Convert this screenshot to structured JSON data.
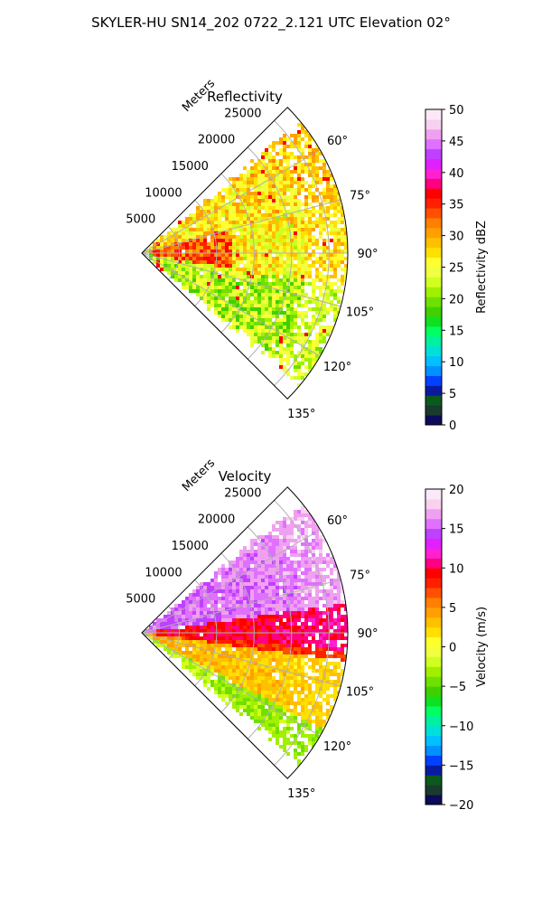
{
  "title": "SKYLER-HU  SN14_202  0722_2.121 UTC Elevation 02°",
  "chart_data": [
    {
      "type": "heatmap",
      "projection": "polar-sector",
      "title": "Reflectivity",
      "range_axis_label": "Meters",
      "range_ticks": [
        5000,
        10000,
        15000,
        20000,
        25000
      ],
      "range_tick_labels": [
        "5000",
        "10000",
        "15000",
        "20000",
        "25000"
      ],
      "range_max": 27500,
      "azimuth_range_deg": [
        45,
        135
      ],
      "azimuth_ticks": [
        60,
        75,
        90,
        105,
        120,
        135
      ],
      "azimuth_tick_labels": [
        "60°",
        "75°",
        "90°",
        "105°",
        "120°",
        "135°"
      ],
      "grid": true,
      "colorbar": {
        "label": "Reflectivity dBZ",
        "range": [
          0,
          50
        ],
        "ticks": [
          0,
          5,
          10,
          15,
          20,
          25,
          30,
          35,
          40,
          45,
          50
        ],
        "tick_labels": [
          "0",
          "5",
          "10",
          "15",
          "20",
          "25",
          "30",
          "35",
          "40",
          "45",
          "50"
        ],
        "colors": [
          "#0b0b5a",
          "#1a3a2e",
          "#0a5a1e",
          "#0a1aa0",
          "#0040ff",
          "#0090ff",
          "#00c0ff",
          "#00e0d8",
          "#00f0a0",
          "#00ff60",
          "#10e020",
          "#40d000",
          "#70e000",
          "#a0f000",
          "#d0ff20",
          "#f0ff40",
          "#ffff30",
          "#ffe000",
          "#ffc000",
          "#ffa000",
          "#ff8000",
          "#ff5000",
          "#ff2000",
          "#ff0000",
          "#ff0080",
          "#ff20d0",
          "#e020ff",
          "#c040ff",
          "#e070ff",
          "#f0a0f0",
          "#f8d0f0",
          "#fce8f8"
        ]
      },
      "data_summary": [
        {
          "azimuth_deg": [
            50,
            75
          ],
          "range_m": [
            0,
            27500
          ],
          "value_dbz": 27
        },
        {
          "azimuth_deg": [
            75,
            100
          ],
          "range_m": [
            0,
            12000
          ],
          "value_dbz": 33
        },
        {
          "azimuth_deg": [
            75,
            100
          ],
          "range_m": [
            12000,
            27500
          ],
          "value_dbz": 26
        },
        {
          "azimuth_deg": [
            100,
            130
          ],
          "range_m": [
            0,
            27500
          ],
          "value_dbz": 22
        }
      ]
    },
    {
      "type": "heatmap",
      "projection": "polar-sector",
      "title": "Velocity",
      "range_axis_label": "Meters",
      "range_ticks": [
        5000,
        10000,
        15000,
        20000,
        25000
      ],
      "range_tick_labels": [
        "5000",
        "10000",
        "15000",
        "20000",
        "25000"
      ],
      "range_max": 27500,
      "azimuth_range_deg": [
        45,
        135
      ],
      "azimuth_ticks": [
        60,
        75,
        90,
        105,
        120,
        135
      ],
      "azimuth_tick_labels": [
        "60°",
        "75°",
        "90°",
        "105°",
        "120°",
        "135°"
      ],
      "grid": true,
      "colorbar": {
        "label": "Velocity (m/s)",
        "range": [
          -20,
          20
        ],
        "ticks": [
          -20,
          -15,
          -10,
          -5,
          0,
          5,
          10,
          15,
          20
        ],
        "tick_labels": [
          "−20",
          "−15",
          "−10",
          "−5",
          "0",
          "5",
          "10",
          "15",
          "20"
        ],
        "colors": [
          "#0b0b5a",
          "#1a3a2e",
          "#0a5a1e",
          "#0a1aa0",
          "#0040ff",
          "#0090ff",
          "#00c0ff",
          "#00e0d8",
          "#00f0a0",
          "#00ff60",
          "#10e020",
          "#40d000",
          "#70e000",
          "#a0f000",
          "#d0ff20",
          "#f0ff40",
          "#ffff30",
          "#ffe000",
          "#ffc000",
          "#ffa000",
          "#ff8000",
          "#ff5000",
          "#ff2000",
          "#ff0000",
          "#ff0080",
          "#ff20d0",
          "#e020ff",
          "#c040ff",
          "#e070ff",
          "#f0a0f0",
          "#f8d0f0",
          "#fce8f8"
        ]
      },
      "data_summary": [
        {
          "azimuth_deg": [
            50,
            82
          ],
          "range_m": [
            0,
            27500
          ],
          "value_ms": 15
        },
        {
          "azimuth_deg": [
            82,
            98
          ],
          "range_m": [
            0,
            27500
          ],
          "value_ms": 9
        },
        {
          "azimuth_deg": [
            98,
            118
          ],
          "range_m": [
            0,
            27500
          ],
          "value_ms": 4
        },
        {
          "azimuth_deg": [
            118,
            130
          ],
          "range_m": [
            0,
            27500
          ],
          "value_ms": -2
        }
      ]
    }
  ]
}
